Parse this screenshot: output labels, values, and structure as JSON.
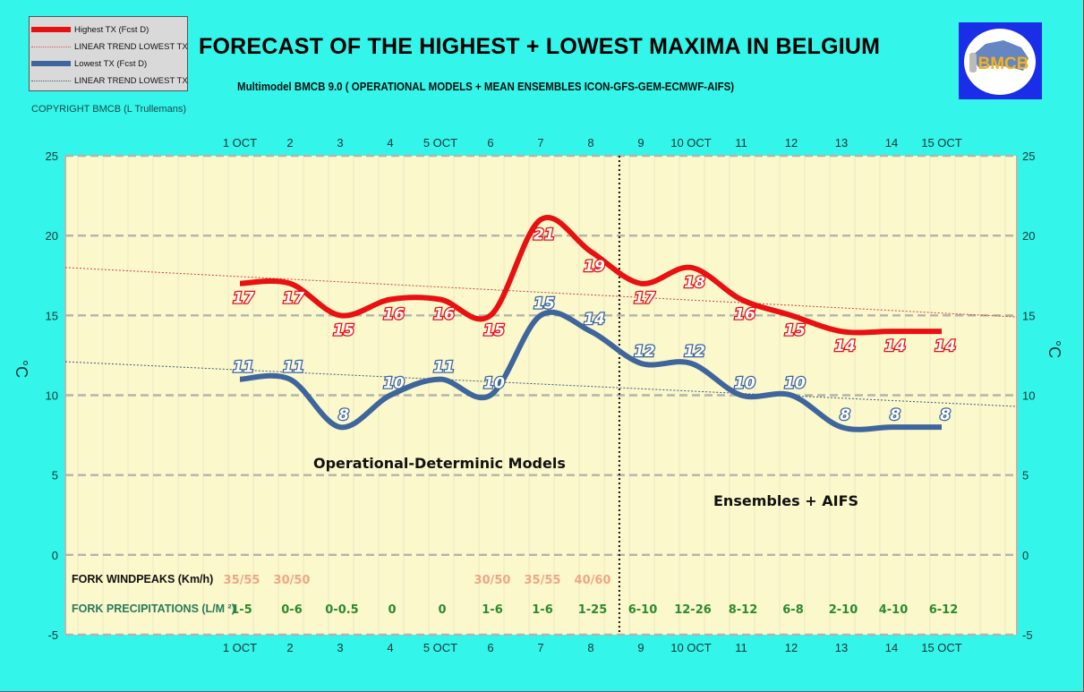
{
  "title": "FORECAST OF THE HIGHEST + LOWEST MAXIMA IN BELGIUM",
  "subtitle": "Multimodel BMCB 9.0 ( OPERATIONAL MODELS + MEAN ENSEMBLES  ICON-GFS-GEM-ECMWF-AIFS)",
  "copyright": "COPYRIGHT BMCB (L Trullemans)",
  "logo": {
    "text": "BMCB",
    "icon": "bmcb-logo-icon"
  },
  "legend": [
    {
      "label": "Highest TX (Fcst D)",
      "style": "thick",
      "color": "#e81010"
    },
    {
      "label": "LINEAR TREND LOWEST  TX",
      "style": "dotted",
      "color": "#e05050"
    },
    {
      "label": "Lowest TX (Fcst D)",
      "style": "thick",
      "color": "#3e659c"
    },
    {
      "label": "LINEAR TREND LOWEST TX",
      "style": "dotted",
      "color": "#3e5a7a"
    }
  ],
  "chart_data": {
    "type": "line",
    "title": "FORECAST OF THE HIGHEST + LOWEST MAXIMA IN BELGIUM",
    "xlabel": "",
    "ylabel": "°C",
    "ylim": [
      -5,
      25
    ],
    "yticks": [
      -5,
      0,
      5,
      10,
      15,
      20,
      25
    ],
    "grid": true,
    "categories": [
      "1 OCT",
      "2",
      "3",
      "4",
      "5 OCT",
      "6",
      "7",
      "8",
      "9",
      "10 OCT",
      "11",
      "12",
      "13",
      "14",
      "15 OCT"
    ],
    "series": [
      {
        "name": "Highest TX (Fcst D)",
        "color": "#e81010",
        "values": [
          17,
          17,
          15,
          16,
          16,
          15,
          21,
          19,
          17,
          18,
          16,
          15,
          14,
          14,
          14
        ]
      },
      {
        "name": "Lowest TX (Fcst D)",
        "color": "#3e659c",
        "values": [
          11,
          11,
          8,
          10,
          11,
          10,
          15,
          14,
          12,
          12,
          10,
          10,
          8,
          8,
          8
        ]
      }
    ],
    "trends": [
      {
        "name": "LINEAR TREND LOWEST  TX",
        "color": "#d04040",
        "start_value": 18.0,
        "end_value": 14.9
      },
      {
        "name": "LINEAR TREND LOWEST TX",
        "color": "#3e5a7a",
        "start_value": 12.1,
        "end_value": 9.3
      }
    ],
    "divider_after_category": "8",
    "annotations": [
      {
        "text": "Operational-Determinic Models",
        "position": "center-left"
      },
      {
        "text": "Ensembles + AIFS",
        "position": "center-right"
      }
    ],
    "rows": {
      "wind": {
        "title": "FORK WINDPEAKS (Km/h)",
        "values": [
          "35/55",
          "30/50",
          "",
          "",
          "",
          "30/50",
          "35/55",
          "40/60",
          "",
          "",
          "",
          "",
          "",
          "",
          ""
        ]
      },
      "precip": {
        "title": "FORK PRECIPITATIONS (L/M ²)",
        "values": [
          "1-5",
          "0-6",
          "0-0.5",
          "0",
          "0",
          "1-6",
          "1-6",
          "1-25",
          "6-10",
          "12-26",
          "8-12",
          "6-8",
          "2-10",
          "4-10",
          "6-12"
        ]
      }
    }
  }
}
